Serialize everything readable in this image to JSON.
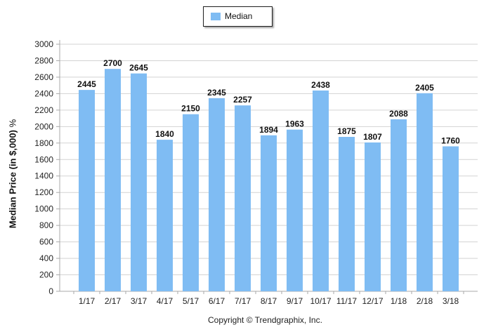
{
  "legend": {
    "label": "Median"
  },
  "copyright": "Copyright © Trendgraphix, Inc.",
  "colors": {
    "bar": "#7fbcf3",
    "grid": "#d3d3d3",
    "axis": "#a9a9a9"
  },
  "chart_data": {
    "type": "bar",
    "categories": [
      "1/17",
      "2/17",
      "3/17",
      "4/17",
      "5/17",
      "6/17",
      "7/17",
      "8/17",
      "9/17",
      "10/17",
      "11/17",
      "12/17",
      "1/18",
      "2/18",
      "3/18"
    ],
    "series": [
      {
        "name": "Median",
        "values": [
          2445,
          2700,
          2645,
          1840,
          2150,
          2345,
          2257,
          1894,
          1963,
          2438,
          1875,
          1807,
          2088,
          2405,
          1760
        ]
      }
    ],
    "ylabel": "Median Price (in $,000)",
    "ylabel_suffix": "%",
    "yticks": [
      0,
      200,
      400,
      600,
      800,
      1000,
      1200,
      1400,
      1600,
      1800,
      2000,
      2200,
      2400,
      2600,
      2800,
      3000
    ],
    "ylim": [
      0,
      3000
    ],
    "grid": true,
    "legend_position": "top-center"
  }
}
